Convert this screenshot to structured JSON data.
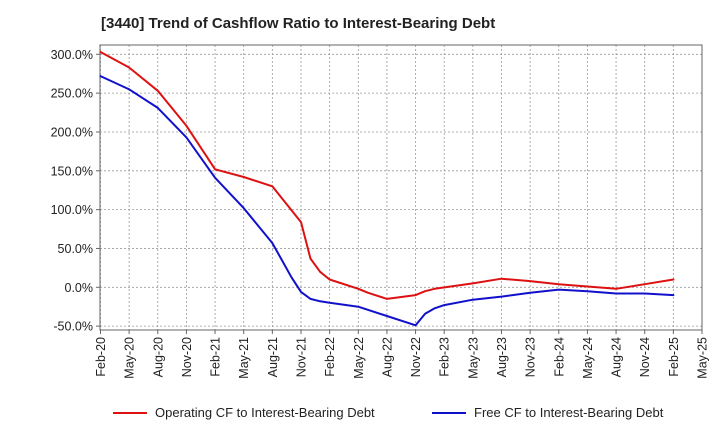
{
  "chart_data": {
    "type": "line",
    "title": "[3440]  Trend of Cashflow Ratio to Interest-Bearing Debt",
    "xlabel": "",
    "ylabel": "",
    "x_tick_labels": [
      "Feb-20",
      "May-20",
      "Aug-20",
      "Nov-20",
      "Feb-21",
      "May-21",
      "Aug-21",
      "Nov-21",
      "Feb-22",
      "May-22",
      "Aug-22",
      "Nov-22",
      "Feb-23",
      "May-23",
      "Aug-23",
      "Nov-23",
      "Feb-24",
      "May-24",
      "Aug-24",
      "Nov-24",
      "Feb-25",
      "May-25"
    ],
    "y_tick_labels": [
      "300.0%",
      "250.0%",
      "200.0%",
      "150.0%",
      "100.0%",
      "50.0%",
      "0.0%",
      "-50.0%"
    ],
    "y_ticks": [
      300,
      250,
      200,
      150,
      100,
      50,
      0,
      -50
    ],
    "ylim": [
      -55,
      312
    ],
    "grid": true,
    "legend_position": "bottom",
    "series": [
      {
        "name": "Operating CF to Interest-Bearing Debt",
        "color": "#dd1111",
        "points": [
          [
            "Feb-20",
            303
          ],
          [
            "May-20",
            283
          ],
          [
            "Aug-20",
            253
          ],
          [
            "Nov-20",
            208
          ],
          [
            "Feb-21",
            152
          ],
          [
            "May-21",
            142
          ],
          [
            "Aug-21",
            130
          ],
          [
            "Nov-21",
            84
          ],
          [
            "Dec-21",
            37
          ],
          [
            "Jan-22",
            20
          ],
          [
            "Feb-22",
            10
          ],
          [
            "May-22",
            -2
          ],
          [
            "Jun-22",
            -7
          ],
          [
            "Aug-22",
            -15
          ],
          [
            "Nov-22",
            -10
          ],
          [
            "Dec-22",
            -5
          ],
          [
            "Jan-23",
            -2
          ],
          [
            "May-23",
            5
          ],
          [
            "Aug-23",
            11
          ],
          [
            "Nov-23",
            8
          ],
          [
            "Feb-24",
            4
          ],
          [
            "May-24",
            1
          ],
          [
            "Aug-24",
            -2
          ],
          [
            "Nov-24",
            4
          ],
          [
            "Feb-25",
            10
          ]
        ]
      },
      {
        "name": "Free CF to Interest-Bearing Debt",
        "color": "#1111cc",
        "points": [
          [
            "Feb-20",
            272
          ],
          [
            "May-20",
            255
          ],
          [
            "Aug-20",
            231
          ],
          [
            "Nov-20",
            193
          ],
          [
            "Feb-21",
            141
          ],
          [
            "May-21",
            102
          ],
          [
            "Aug-21",
            57
          ],
          [
            "Sep-21",
            35
          ],
          [
            "Oct-21",
            13
          ],
          [
            "Nov-21",
            -6
          ],
          [
            "Dec-21",
            -15
          ],
          [
            "Jan-22",
            -18
          ],
          [
            "Feb-22",
            -20
          ],
          [
            "May-22",
            -25
          ],
          [
            "Aug-22",
            -37
          ],
          [
            "Nov-22",
            -49
          ],
          [
            "Dec-22",
            -34
          ],
          [
            "Jan-23",
            -27
          ],
          [
            "Feb-23",
            -23
          ],
          [
            "May-23",
            -16
          ],
          [
            "Aug-23",
            -12
          ],
          [
            "Nov-23",
            -7
          ],
          [
            "Feb-24",
            -3
          ],
          [
            "May-24",
            -5
          ],
          [
            "Aug-24",
            -8
          ],
          [
            "Nov-24",
            -8
          ],
          [
            "Feb-25",
            -10
          ]
        ]
      }
    ]
  }
}
